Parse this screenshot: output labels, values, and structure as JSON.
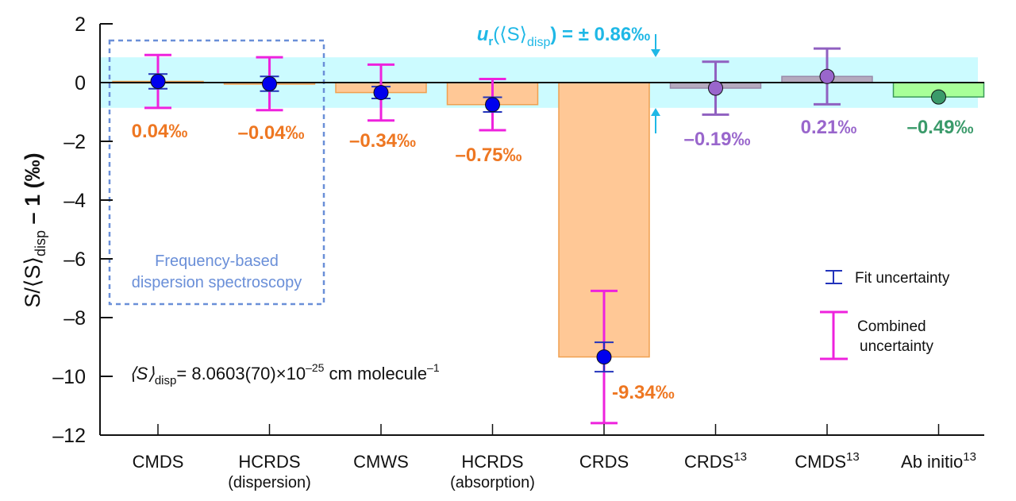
{
  "chart_data": {
    "type": "bar",
    "title": "",
    "xlabel": "",
    "ylabel": {
      "main": "S/⟨S⟩",
      "sub": "disp",
      "tail": " – 1 (‰)"
    },
    "ylim": [
      -12,
      2
    ],
    "yticks": [
      2,
      0,
      -2,
      -4,
      -6,
      -8,
      -10,
      -12
    ],
    "ytick_labels": [
      "2",
      "0",
      "–2",
      "–4",
      "–6",
      "–8",
      "–10",
      "–12"
    ],
    "grid": false,
    "categories": [
      {
        "name": "CMDS",
        "sub": "",
        "sup": ""
      },
      {
        "name": "HCRDS",
        "sub": "(dispersion)",
        "sup": ""
      },
      {
        "name": "CMWS",
        "sub": "",
        "sup": ""
      },
      {
        "name": "HCRDS",
        "sub": "(absorption)",
        "sup": ""
      },
      {
        "name": "CRDS",
        "sub": "",
        "sup": ""
      },
      {
        "name": "CRDS",
        "sub": "",
        "sup": "13"
      },
      {
        "name": "CMDS",
        "sub": "",
        "sup": "13"
      },
      {
        "name": "Ab initio",
        "sub": "",
        "sup": "13"
      }
    ],
    "values": [
      0.04,
      -0.04,
      -0.34,
      -0.75,
      -9.34,
      -0.19,
      0.21,
      -0.49
    ],
    "value_labels": [
      "0.04‰",
      "–0.04‰",
      "–0.34‰",
      "–0.75‰",
      "-9.34‰",
      "–0.19‰",
      "0.21‰",
      "–0.49‰"
    ],
    "point_values": [
      0.04,
      -0.04,
      -0.34,
      -0.75,
      -9.34,
      -0.19,
      0.21,
      -0.49
    ],
    "fit_uncertainty": [
      0.25,
      0.25,
      0.2,
      0.25,
      0.5,
      null,
      null,
      null
    ],
    "combined_uncertainty": [
      0.9,
      0.9,
      0.95,
      0.87,
      2.25,
      0.9,
      0.95,
      null
    ],
    "groups": [
      "orange",
      "orange",
      "orange",
      "orange",
      "orange",
      "purple",
      "purple",
      "green"
    ],
    "colors": {
      "orange_bar_fill": "#ffc896",
      "orange_bar_stroke": "#f0a050",
      "orange_label": "#ee7722",
      "purple_bar_fill": "#b4aabe",
      "purple_bar_stroke": "#9a8aaa",
      "purple_point": "#9966cc",
      "purple_error": "#9060c0",
      "purple_label": "#9966cc",
      "green_bar_fill": "#a8ff98",
      "green_bar_stroke": "#3a9a5a",
      "green_point": "#3a9a6a",
      "green_label": "#3a9a6a",
      "blue_point": "#0000ee",
      "fit_error": "#2233bb",
      "combined_error": "#ee22dd",
      "band": "#ccfbff",
      "band_annotation": "#1fb8e6",
      "dashed_box": "#6a8fd8"
    },
    "uncertainty_band": {
      "half_width": 0.86,
      "label_prefix": "u",
      "label_sub": "r",
      "label_mid": "(⟨S⟩",
      "label_sub2": "disp",
      "label_tail": ") = ± 0.86‰"
    },
    "group_box": {
      "line1": "Frequency-based",
      "line2": "dispersion spectroscopy"
    },
    "reference_note": {
      "prefix": "⟨S⟩",
      "sub": "disp",
      "mid": "= 8.0603(70)×10",
      "exp": "–25",
      "tail": " cm molecule",
      "exp2": "–1"
    },
    "legend": {
      "placement": "right",
      "entries": [
        {
          "label": "Fit uncertainty",
          "type": "fit-error-bar"
        },
        {
          "label_line1": "Combined",
          "label_line2": "uncertainty",
          "type": "combined-error-bar"
        }
      ]
    }
  }
}
